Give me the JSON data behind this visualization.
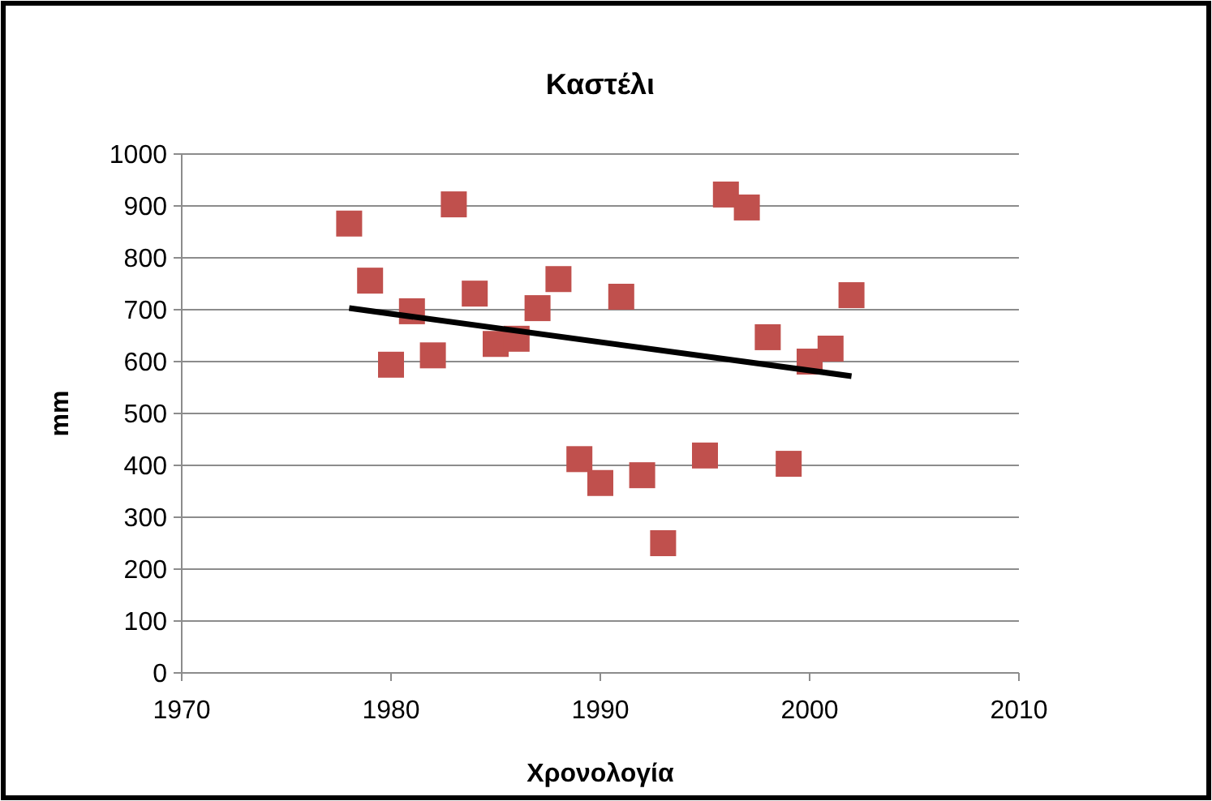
{
  "chart_data": {
    "type": "scatter",
    "title": "Καστέλι",
    "xlabel": "Χρονολογία",
    "ylabel": "mm",
    "xlim": [
      1970,
      2010
    ],
    "xticks": [
      1970,
      1980,
      1990,
      2000,
      2010
    ],
    "ylim": [
      0,
      1000
    ],
    "yticks": [
      0,
      100,
      200,
      300,
      400,
      500,
      600,
      700,
      800,
      900,
      1000
    ],
    "grid": "y",
    "series": [
      {
        "marker": "square",
        "color": "#c0504d",
        "x": [
          1978,
          1979,
          1980,
          1981,
          1982,
          1983,
          1984,
          1985,
          1986,
          1987,
          1988,
          1989,
          1990,
          1991,
          1992,
          1993,
          1995,
          1996,
          1997,
          1998,
          1999,
          2000,
          2001,
          2002
        ],
        "values": [
          866,
          756,
          594,
          697,
          612,
          903,
          731,
          634,
          644,
          703,
          759,
          412,
          366,
          725,
          381,
          250,
          419,
          922,
          897,
          647,
          403,
          600,
          625,
          728
        ]
      },
      {
        "type": "line",
        "color": "#000000",
        "x": [
          1978,
          2002
        ],
        "values": [
          703,
          572
        ]
      }
    ]
  }
}
